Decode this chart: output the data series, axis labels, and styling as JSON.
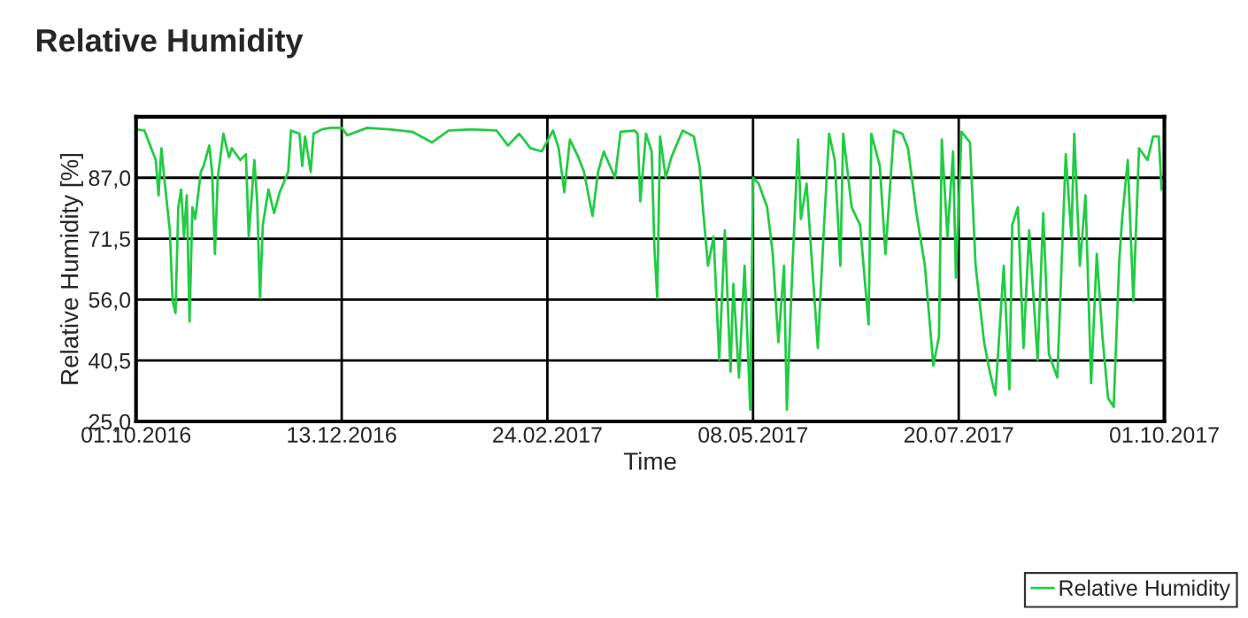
{
  "chart_data": {
    "type": "line",
    "title": "Relative Humidity",
    "xlabel": "Time",
    "ylabel": "Relative Humidity [%]",
    "xlim": [
      "2016-10-01",
      "2017-10-01"
    ],
    "xticks": [
      {
        "value": "2016-10-01",
        "label": "01.10.2016"
      },
      {
        "value": "2016-12-13",
        "label": "13.12.2016"
      },
      {
        "value": "2017-02-24",
        "label": "24.02.2017"
      },
      {
        "value": "2017-05-08",
        "label": "08.05.2017"
      },
      {
        "value": "2017-07-20",
        "label": "20.07.2017"
      },
      {
        "value": "2017-10-01",
        "label": "01.10.2017"
      }
    ],
    "ylim": [
      25,
      102.5
    ],
    "yticks": [
      {
        "value": 25,
        "label": "25,0"
      },
      {
        "value": 40.5,
        "label": "40,5"
      },
      {
        "value": 56,
        "label": "56,0"
      },
      {
        "value": 71.5,
        "label": "71,5"
      },
      {
        "value": 87,
        "label": "87,0"
      }
    ],
    "grid": true,
    "legend": "bottom right",
    "marker": "none",
    "line_style": "solid",
    "x": [
      "2016-10-01",
      "2016-10-04",
      "2016-10-06",
      "2016-10-08",
      "2016-10-09",
      "2016-10-10",
      "2016-10-11",
      "2016-10-13",
      "2016-10-14",
      "2016-10-15",
      "2016-10-16",
      "2016-10-17",
      "2016-10-18",
      "2016-10-19",
      "2016-10-20",
      "2016-10-21",
      "2016-10-22",
      "2016-10-24",
      "2016-10-25",
      "2016-10-27",
      "2016-10-28",
      "2016-10-29",
      "2016-10-30",
      "2016-11-01",
      "2016-11-03",
      "2016-11-04",
      "2016-11-07",
      "2016-11-09",
      "2016-11-10",
      "2016-11-12",
      "2016-11-13",
      "2016-11-14",
      "2016-11-15",
      "2016-11-17",
      "2016-11-19",
      "2016-11-21",
      "2016-11-24",
      "2016-11-25",
      "2016-11-28",
      "2016-11-29",
      "2016-11-30",
      "2016-12-02",
      "2016-12-03",
      "2016-12-06",
      "2016-12-09",
      "2016-12-13",
      "2016-12-15",
      "2016-12-22",
      "2016-12-30",
      "2017-01-07",
      "2017-01-14",
      "2017-01-20",
      "2017-01-28",
      "2017-02-06",
      "2017-02-10",
      "2017-02-14",
      "2017-02-18",
      "2017-02-22",
      "2017-02-26",
      "2017-02-28",
      "2017-03-02",
      "2017-03-04",
      "2017-03-07",
      "2017-03-09",
      "2017-03-12",
      "2017-03-14",
      "2017-03-16",
      "2017-03-20",
      "2017-03-22",
      "2017-03-27",
      "2017-03-28",
      "2017-03-29",
      "2017-03-31",
      "2017-04-02",
      "2017-04-03",
      "2017-04-04",
      "2017-04-05",
      "2017-04-07",
      "2017-04-09",
      "2017-04-13",
      "2017-04-17",
      "2017-04-19",
      "2017-04-20",
      "2017-04-22",
      "2017-04-24",
      "2017-04-26",
      "2017-04-28",
      "2017-04-30",
      "2017-05-01",
      "2017-05-03",
      "2017-05-05",
      "2017-05-07",
      "2017-05-08",
      "2017-05-10",
      "2017-05-13",
      "2017-05-15",
      "2017-05-17",
      "2017-05-19",
      "2017-05-20",
      "2017-05-22",
      "2017-05-24",
      "2017-05-25",
      "2017-05-27",
      "2017-05-29",
      "2017-05-31",
      "2017-06-02",
      "2017-06-04",
      "2017-06-06",
      "2017-06-08",
      "2017-06-09",
      "2017-06-12",
      "2017-06-15",
      "2017-06-18",
      "2017-06-19",
      "2017-06-22",
      "2017-06-24",
      "2017-06-27",
      "2017-06-30",
      "2017-07-02",
      "2017-07-05",
      "2017-07-08",
      "2017-07-11",
      "2017-07-13",
      "2017-07-14",
      "2017-07-16",
      "2017-07-18",
      "2017-07-19",
      "2017-07-21",
      "2017-07-24",
      "2017-07-26",
      "2017-07-29",
      "2017-07-31",
      "2017-08-02",
      "2017-08-05",
      "2017-08-07",
      "2017-08-08",
      "2017-08-10",
      "2017-08-12",
      "2017-08-14",
      "2017-08-17",
      "2017-08-19",
      "2017-08-21",
      "2017-08-24",
      "2017-08-27",
      "2017-08-29",
      "2017-08-30",
      "2017-09-01",
      "2017-09-03",
      "2017-09-05",
      "2017-09-07",
      "2017-09-09",
      "2017-09-11",
      "2017-09-13",
      "2017-09-15",
      "2017-09-16",
      "2017-09-18",
      "2017-09-20",
      "2017-09-22",
      "2017-09-25",
      "2017-09-27",
      "2017-09-29",
      "2017-09-30"
    ],
    "series": [
      {
        "name": "Relative Humidity",
        "color": "#22cc44",
        "values": [
          99.3,
          99,
          95.2,
          91.5,
          82.5,
          94.5,
          87,
          73.6,
          55.6,
          52.6,
          79.5,
          84,
          72,
          82.5,
          50.4,
          79.5,
          76.5,
          88.5,
          90,
          95.2,
          88.5,
          67.6,
          87,
          98.2,
          92.2,
          94.5,
          91.5,
          93,
          72,
          91.5,
          81,
          56.4,
          75,
          84,
          78,
          83.3,
          88.5,
          99,
          98.2,
          90,
          97.5,
          88.5,
          98.2,
          99.3,
          99.7,
          99.7,
          97.8,
          99.7,
          99.3,
          98.7,
          96,
          99,
          99.3,
          99,
          95.2,
          98.2,
          94.5,
          93.7,
          99,
          94.5,
          83.3,
          96.7,
          92.2,
          88.5,
          77.3,
          88.5,
          93.7,
          87,
          98.7,
          99,
          98.2,
          81,
          98.2,
          93.7,
          69,
          56.4,
          97.5,
          87,
          92.2,
          99,
          97.5,
          90,
          81,
          64.6,
          72,
          40.7,
          73.6,
          37.7,
          60,
          36.2,
          64.6,
          28,
          87,
          85.5,
          79.5,
          67.6,
          45.2,
          64.6,
          28,
          64.6,
          96.7,
          76.5,
          85.5,
          64.6,
          43.7,
          72,
          98.2,
          91.5,
          64.6,
          98.2,
          79.5,
          75,
          49.7,
          98.2,
          90,
          67.6,
          99,
          98.2,
          94.5,
          78,
          64.6,
          39.2,
          46.7,
          96.7,
          72,
          93.7,
          61.6,
          98.7,
          96,
          64.6,
          45.2,
          37.7,
          31.7,
          64.6,
          33.2,
          75,
          79.5,
          43.7,
          73.6,
          40.7,
          78,
          42.2,
          36.2,
          93,
          72,
          98.2,
          64.6,
          82.5,
          34.7,
          67.6,
          46.7,
          31,
          28.7,
          66.1,
          76.5,
          91.5,
          55.6,
          94.5,
          91.5,
          97.5,
          97.5,
          84
        ]
      }
    ]
  }
}
